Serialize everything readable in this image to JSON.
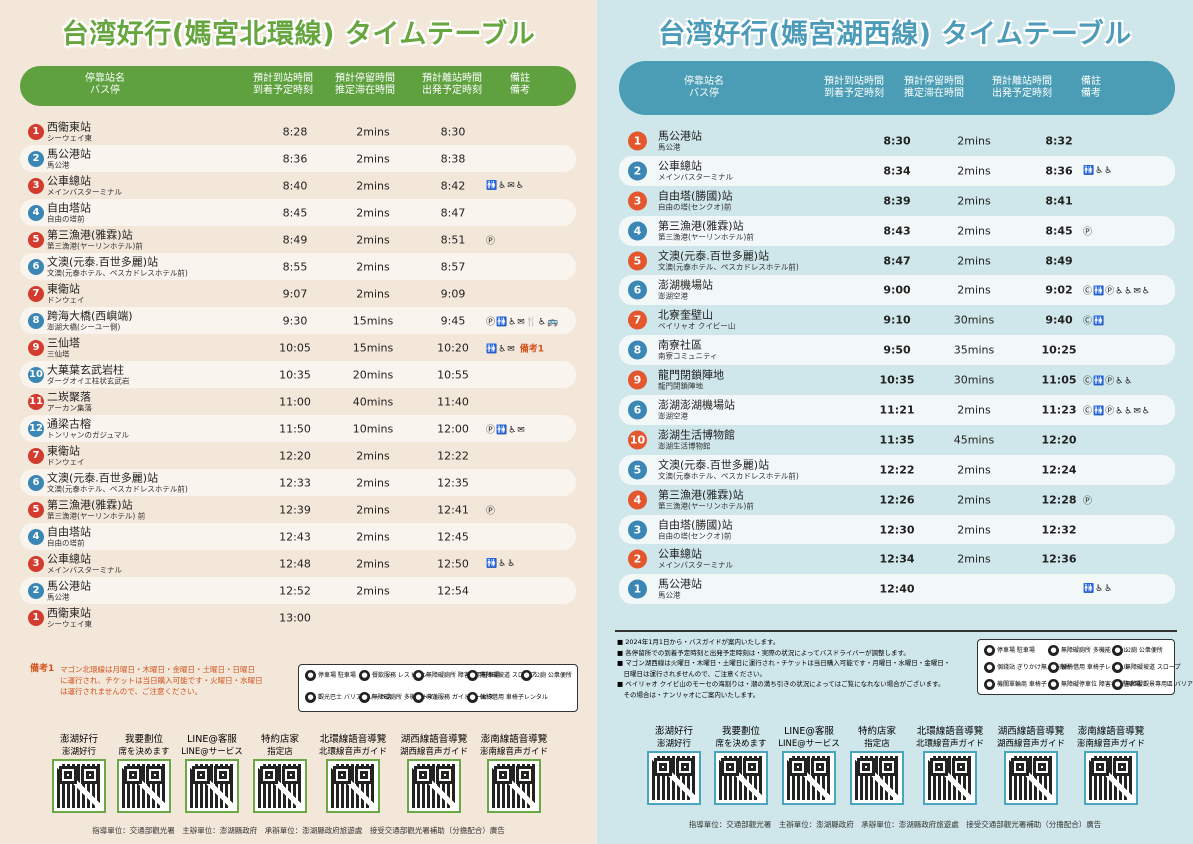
{
  "left": {
    "title": "台湾好行(媽宮北環線) タイムテーブル",
    "header": {
      "stop": [
        "停靠站名",
        "バス停"
      ],
      "arrive": [
        "預計到站時間",
        "到着予定時刻"
      ],
      "stay": [
        "預計停留時間",
        "推定滞在時間"
      ],
      "depart": [
        "預計離站時間",
        "出発予定時刻"
      ],
      "remarks": [
        "備註",
        "備考"
      ]
    },
    "rows": [
      {
        "num": "1",
        "color": "#d23b2e",
        "zh": "西衛東站",
        "ja": "シーウェイ東",
        "arr": "8:28",
        "stay": "2mins",
        "dep": "8:30",
        "rem": ""
      },
      {
        "num": "2",
        "color": "#3a86b4",
        "zh": "馬公港站",
        "ja": "馬公港",
        "arr": "8:36",
        "stay": "2mins",
        "dep": "8:38",
        "rem": ""
      },
      {
        "num": "3",
        "color": "#d23b2e",
        "zh": "公車總站",
        "ja": "メインバスターミナル",
        "arr": "8:40",
        "stay": "2mins",
        "dep": "8:42",
        "rem": "🚻♿✉♿"
      },
      {
        "num": "4",
        "color": "#3a86b4",
        "zh": "自由塔站",
        "ja": "自由の塔前",
        "arr": "8:45",
        "stay": "2mins",
        "dep": "8:47",
        "rem": ""
      },
      {
        "num": "5",
        "color": "#d23b2e",
        "zh": "第三漁港(雅霖)站",
        "ja": "第三漁港(ヤーリンホテル)前",
        "arr": "8:49",
        "stay": "2mins",
        "dep": "8:51",
        "rem": "Ⓟ"
      },
      {
        "num": "6",
        "color": "#3a86b4",
        "zh": "文澳(元泰.百世多麗)站",
        "ja": "文澳(元泰ホテル、ペスカドレスホテル前)",
        "arr": "8:55",
        "stay": "2mins",
        "dep": "8:57",
        "rem": ""
      },
      {
        "num": "7",
        "color": "#d23b2e",
        "zh": "東衛站",
        "ja": "ドンウェイ",
        "arr": "9:07",
        "stay": "2mins",
        "dep": "9:09",
        "rem": ""
      },
      {
        "num": "8",
        "color": "#3a86b4",
        "zh": "跨海大橋(西嶼端)",
        "ja": "澎湖大橋(シーユー側)",
        "arr": "9:30",
        "stay": "15mins",
        "dep": "9:45",
        "rem": "Ⓟ🚻♿✉🍴♿🚌"
      },
      {
        "num": "9",
        "color": "#d23b2e",
        "zh": "三仙塔",
        "ja": "三仙塔",
        "arr": "10:05",
        "stay": "15mins",
        "dep": "10:20",
        "rem": "🚻♿✉",
        "note": "備考1"
      },
      {
        "num": "10",
        "color": "#3a86b4",
        "zh": "大菓葉玄武岩柱",
        "ja": "ダーグオイエ柱状玄武岩",
        "arr": "10:35",
        "stay": "20mins",
        "dep": "10:55",
        "rem": ""
      },
      {
        "num": "11",
        "color": "#d23b2e",
        "zh": "二崁聚落",
        "ja": "アーカン集落",
        "arr": "11:00",
        "stay": "40mins",
        "dep": "11:40",
        "rem": ""
      },
      {
        "num": "12",
        "color": "#3a86b4",
        "zh": "通梁古榕",
        "ja": "トンリャンのガジュマル",
        "arr": "11:50",
        "stay": "10mins",
        "dep": "12:00",
        "rem": "Ⓟ🚻♿✉"
      },
      {
        "num": "7",
        "color": "#d23b2e",
        "zh": "東衛站",
        "ja": "ドンウェイ",
        "arr": "12:20",
        "stay": "2mins",
        "dep": "12:22",
        "rem": ""
      },
      {
        "num": "6",
        "color": "#3a86b4",
        "zh": "文澳(元泰.百世多麗)站",
        "ja": "文澳(元泰ホテル、ペスカドレスホテル前)",
        "arr": "12:33",
        "stay": "2mins",
        "dep": "12:35",
        "rem": ""
      },
      {
        "num": "5",
        "color": "#d23b2e",
        "zh": "第三漁港(雅霖)站",
        "ja": "第三漁港(ヤーリンホテル) 前",
        "arr": "12:39",
        "stay": "2mins",
        "dep": "12:41",
        "rem": "Ⓟ"
      },
      {
        "num": "4",
        "color": "#3a86b4",
        "zh": "自由塔站",
        "ja": "自由の塔前",
        "arr": "12:43",
        "stay": "2mins",
        "dep": "12:45",
        "rem": ""
      },
      {
        "num": "3",
        "color": "#d23b2e",
        "zh": "公車總站",
        "ja": "メインバスターミナル",
        "arr": "12:48",
        "stay": "2mins",
        "dep": "12:50",
        "rem": "🚻♿♿"
      },
      {
        "num": "2",
        "color": "#3a86b4",
        "zh": "馬公港站",
        "ja": "馬公港",
        "arr": "12:52",
        "stay": "2mins",
        "dep": "12:54",
        "rem": ""
      },
      {
        "num": "1",
        "color": "#d23b2e",
        "zh": "西衛東站",
        "ja": "シーウェイ東",
        "arr": "13:00",
        "stay": "",
        "dep": "",
        "rem": ""
      }
    ],
    "note_label": "備考1",
    "note_text": [
      "マゴン北環線は月曜日・木曜日・金曜日・土曜日・日曜日",
      "に運行され、チケットは当日購入可能です・火曜日・水曜日",
      "は運行されませんので、ご注意ください。"
    ],
    "legend": [
      "停車場 駐車場",
      "餐飲服務 レストラン",
      "無障礙廁所 障害者用駐車場",
      "無障礙坡道 スロープ",
      "公廁 公衆便所",
      "觀光巴士 バリアフリーバス",
      "無障礙廁所 多機能トイレ",
      "導遊服務 ガイドサービス",
      "輪椅借用 車椅子レンタル"
    ],
    "qrs": [
      [
        "澎湖好行",
        "澎湖好行"
      ],
      [
        "我要劃位",
        "席を決めます"
      ],
      [
        "LINE@客服",
        "LINE@サービス"
      ],
      [
        "特約店家",
        "指定店"
      ],
      [
        "北環線語音導覽",
        "北環線音声ガイド"
      ],
      [
        "湖西線語音導覽",
        "湖西線音声ガイド"
      ],
      [
        "澎南線語音導覽",
        "澎南線音声ガイド"
      ]
    ],
    "footer": "指導單位：交通部觀光署　主辦單位：澎湖縣政府　承辦單位：澎湖縣政府旅遊處　接受交通部觀光署補助（分擔配合）廣告"
  },
  "right": {
    "title": "台湾好行(媽宮湖西線) タイムテーブル",
    "header": {
      "stop": [
        "停靠站名",
        "バス停"
      ],
      "arrive": [
        "預計到站時間",
        "到着予定時刻"
      ],
      "stay": [
        "預計停留時間",
        "推定滞在時間"
      ],
      "depart": [
        "預計離站時間",
        "出発予定時刻"
      ],
      "remarks": [
        "備註",
        "備考"
      ]
    },
    "rows": [
      {
        "num": "1",
        "color": "#e4572e",
        "zh": "馬公港站",
        "ja": "馬公港",
        "arr": "8:30",
        "stay": "2mins",
        "dep": "8:32",
        "rem": ""
      },
      {
        "num": "2",
        "color": "#3a86b4",
        "zh": "公車總站",
        "ja": "メインバスターミナル",
        "arr": "8:34",
        "stay": "2mins",
        "dep": "8:36",
        "rem": "🚻♿♿"
      },
      {
        "num": "3",
        "color": "#e4572e",
        "zh": "自由塔(勝國)站",
        "ja": "自由の塔(センクオ)前",
        "arr": "8:39",
        "stay": "2mins",
        "dep": "8:41",
        "rem": ""
      },
      {
        "num": "4",
        "color": "#3a86b4",
        "zh": "第三漁港(雅霖)站",
        "ja": "第三漁港(ヤーリンホテル)前",
        "arr": "8:43",
        "stay": "2mins",
        "dep": "8:45",
        "rem": "Ⓟ"
      },
      {
        "num": "5",
        "color": "#e4572e",
        "zh": "文澳(元泰.百世多麗)站",
        "ja": "文澳(元泰ホテル、ペスカドレスホテル前)",
        "arr": "8:47",
        "stay": "2mins",
        "dep": "8:49",
        "rem": ""
      },
      {
        "num": "6",
        "color": "#3a86b4",
        "zh": "澎湖機場站",
        "ja": "澎湖空港",
        "arr": "9:00",
        "stay": "2mins",
        "dep": "9:02",
        "rem": "Ⓒ🚻Ⓟ♿♿✉♿"
      },
      {
        "num": "7",
        "color": "#e4572e",
        "zh": "北寮奎壁山",
        "ja": "ベイリャオ クイビー山",
        "arr": "9:10",
        "stay": "30mins",
        "dep": "9:40",
        "rem": "Ⓒ🚻"
      },
      {
        "num": "8",
        "color": "#3a86b4",
        "zh": "南寮社區",
        "ja": "南寮コミュニティ",
        "arr": "9:50",
        "stay": "35mins",
        "dep": "10:25",
        "rem": ""
      },
      {
        "num": "9",
        "color": "#e4572e",
        "zh": "龍門閉鎖陣地",
        "ja": "龍門閉鎖陣地",
        "arr": "10:35",
        "stay": "30mins",
        "dep": "11:05",
        "rem": "Ⓒ🚻Ⓟ♿♿"
      },
      {
        "num": "6",
        "color": "#3a86b4",
        "zh": "澎湖澎湖機場站",
        "ja": "澎湖空港",
        "arr": "11:21",
        "stay": "2mins",
        "dep": "11:23",
        "rem": "Ⓒ🚻Ⓟ♿♿✉♿"
      },
      {
        "num": "10",
        "color": "#e4572e",
        "zh": "澎湖生活博物館",
        "ja": "澎湖生活博物館",
        "arr": "11:35",
        "stay": "45mins",
        "dep": "12:20",
        "rem": ""
      },
      {
        "num": "5",
        "color": "#3a86b4",
        "zh": "文澳(元泰.百世多麗)站",
        "ja": "文澳(元泰ホテル、ペスカドレスホテル前)",
        "arr": "12:22",
        "stay": "2mins",
        "dep": "12:24",
        "rem": ""
      },
      {
        "num": "4",
        "color": "#e4572e",
        "zh": "第三漁港(雅霖)站",
        "ja": "第三漁港(ヤーリンホテル)前",
        "arr": "12:26",
        "stay": "2mins",
        "dep": "12:28",
        "rem": "Ⓟ"
      },
      {
        "num": "3",
        "color": "#3a86b4",
        "zh": "自由塔(勝國)站",
        "ja": "自由の塔(センクオ)前",
        "arr": "12:30",
        "stay": "2mins",
        "dep": "12:32",
        "rem": ""
      },
      {
        "num": "2",
        "color": "#e4572e",
        "zh": "公車總站",
        "ja": "メインバスターミナル",
        "arr": "12:34",
        "stay": "2mins",
        "dep": "12:36",
        "rem": ""
      },
      {
        "num": "1",
        "color": "#3a86b4",
        "zh": "馬公港站",
        "ja": "馬公港",
        "arr": "12:40",
        "stay": "",
        "dep": "",
        "rem": "🚻♿♿"
      }
    ],
    "notes": [
      "■ 2024年1月1日から・バスガイドが案内いたします。",
      "■ 各停留所での到着予定時刻と出発予定時刻は・実際の状況によってバスドライバーが調整します。",
      "■ マゴン湖西線は火曜日・木曜日・土曜日に運行され・チケットは当日購入可能です・月曜日・水曜日・金曜日・",
      "　日曜日は運行されませんので、ご注意ください。",
      "■ ベイリャオ クイビ山のモーセの海割りは・潮の満ち引きの状況によってはご覧になれない場合がございます。",
      "　その場合は・ナンリャオにご案内いたします。"
    ],
    "legend": [
      "停車場 駐車場",
      "無障礙廁所 多機能トイレ",
      "公廁 公衆便所",
      "個錢站 ぎりかけ無人販売所",
      "輪椅借用 車椅子レンタル",
      "無障礙坡道 スロープ",
      "機關單輪商 車椅子",
      "無障礙停車位 障害者用駐車場",
      "無障礙觀景專用區 バリアフリー専用エリア"
    ],
    "qrs": [
      [
        "澎湖好行",
        "澎湖好行"
      ],
      [
        "我要劃位",
        "席を決めます"
      ],
      [
        "LINE@客服",
        "LINE@サービス"
      ],
      [
        "特約店家",
        "指定店"
      ],
      [
        "北環線語音導覽",
        "北環線音声ガイド"
      ],
      [
        "湖西線語音導覽",
        "湖西線音声ガイド"
      ],
      [
        "澎南線語音導覽",
        "澎南線音声ガイド"
      ]
    ],
    "footer": "指導單位：交通部觀光署　主辦單位：澎湖縣政府　承辦單位：澎湖縣政府旅遊處　接受交通部觀光署補助（分擔配合）廣告"
  }
}
